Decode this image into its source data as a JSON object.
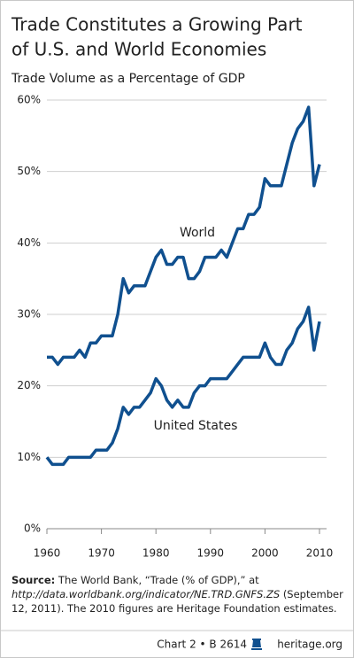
{
  "chart_data": {
    "type": "line",
    "title": [
      "Trade Constitutes a Growing Part",
      "of U.S. and World Economies"
    ],
    "subtitle": "Trade Volume as a Percentage of GDP",
    "x": [
      1960,
      1961,
      1962,
      1963,
      1964,
      1965,
      1966,
      1967,
      1968,
      1969,
      1970,
      1971,
      1972,
      1973,
      1974,
      1975,
      1976,
      1977,
      1978,
      1979,
      1980,
      1981,
      1982,
      1983,
      1984,
      1985,
      1986,
      1987,
      1988,
      1989,
      1990,
      1991,
      1992,
      1993,
      1994,
      1995,
      1996,
      1997,
      1998,
      1999,
      2000,
      2001,
      2002,
      2003,
      2004,
      2005,
      2006,
      2007,
      2008,
      2009,
      2010
    ],
    "series": [
      {
        "name": "World",
        "color": "#10508f",
        "values": [
          24,
          24,
          23,
          24,
          24,
          24,
          25,
          24,
          26,
          26,
          27,
          27,
          27,
          30,
          35,
          33,
          34,
          34,
          34,
          36,
          38,
          39,
          37,
          37,
          38,
          38,
          35,
          35,
          36,
          38,
          38,
          38,
          39,
          38,
          40,
          42,
          42,
          44,
          44,
          45,
          49,
          48,
          48,
          48,
          51,
          54,
          56,
          57,
          59,
          48,
          51
        ]
      },
      {
        "name": "United States",
        "color": "#10508f",
        "values": [
          10,
          9,
          9,
          9,
          10,
          10,
          10,
          10,
          10,
          11,
          11,
          11,
          12,
          14,
          17,
          16,
          17,
          17,
          18,
          19,
          21,
          20,
          18,
          17,
          18,
          17,
          17,
          19,
          20,
          20,
          21,
          21,
          21,
          21,
          22,
          23,
          24,
          24,
          24,
          24,
          26,
          24,
          23,
          23,
          25,
          26,
          28,
          29,
          31,
          25,
          29
        ]
      }
    ],
    "xlim": [
      1960,
      2010
    ],
    "xticks": [
      1960,
      1970,
      1980,
      1990,
      2000,
      2010
    ],
    "ylim": [
      0,
      60
    ],
    "yticks": [
      {
        "value": 0,
        "label": "0%"
      },
      {
        "value": 10,
        "label": "10%"
      },
      {
        "value": 20,
        "label": "20%"
      },
      {
        "value": 30,
        "label": "30%"
      },
      {
        "value": 40,
        "label": "40%"
      },
      {
        "value": 50,
        "label": "50%"
      },
      {
        "value": 60,
        "label": "60%"
      }
    ],
    "grid": true,
    "source": {
      "label": "Source:",
      "text1": "The World Bank, “Trade (% of GDP),” at",
      "url": "http://data.worldbank.org/indicator/NE.TRD.GNFS.ZS",
      "text2": "(September 12, 2011). The 2010 figures are Heritage Foundation estimates."
    },
    "footer": {
      "chart_id": "Chart 2 • B 2614",
      "site": "heritage.org"
    }
  }
}
